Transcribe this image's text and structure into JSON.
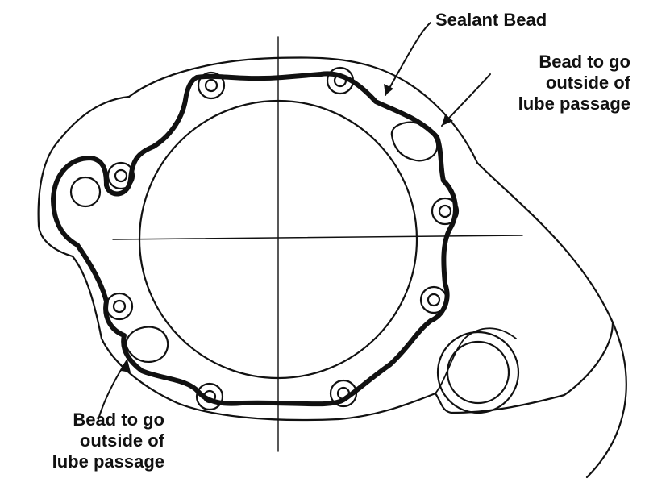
{
  "labels": {
    "sealant_bead": "Sealant Bead",
    "top_note": {
      "line1": "Bead to go",
      "line2": "outside of",
      "line3": "lube passage"
    },
    "bottom_note": {
      "line1": "Bead to go",
      "line2": "outside of",
      "line3": "lube passage"
    }
  },
  "colors": {
    "ink": "#111111",
    "paper": "#ffffff"
  }
}
